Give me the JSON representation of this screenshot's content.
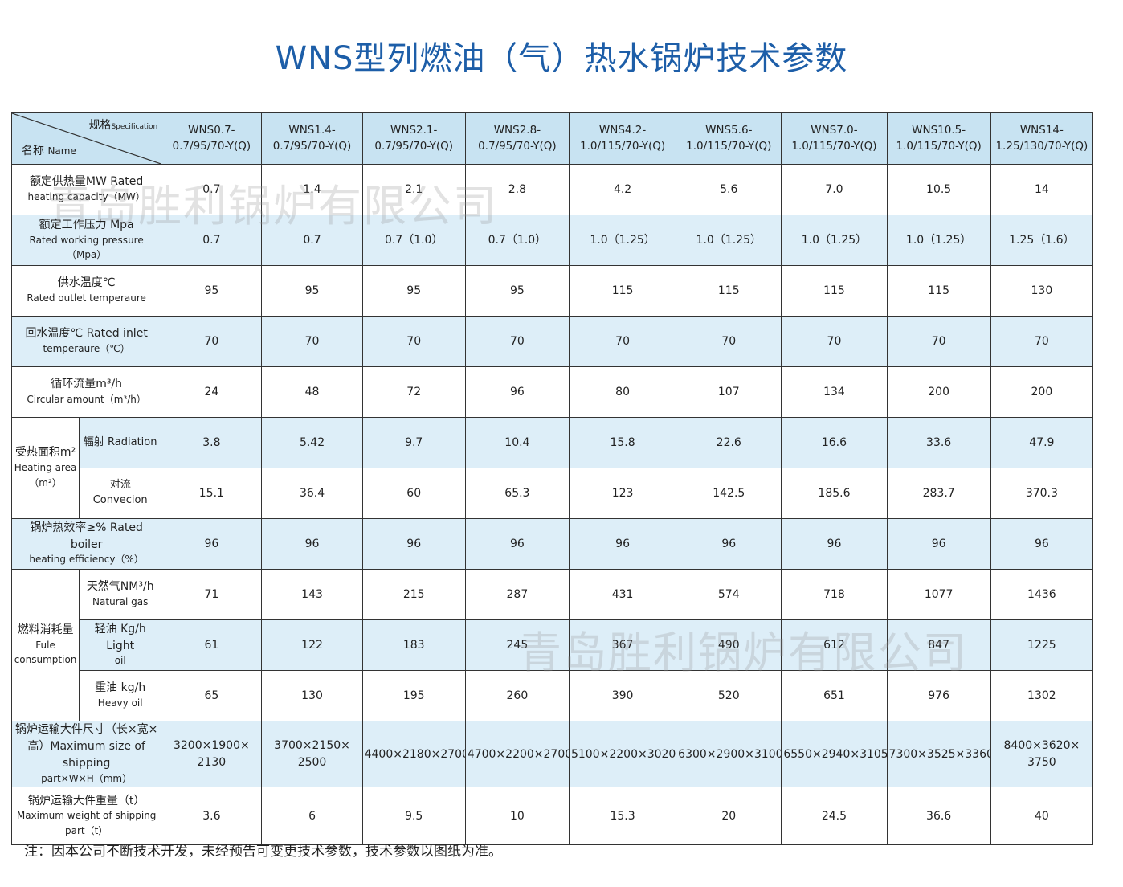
{
  "title": "WNS型列燃油（气）热水锅炉技术参数",
  "watermark": "青岛胜利锅炉有限公司",
  "note": "注：因本公司不断技术开发，未经预告可变更技术参数，技术参数以图纸为准。",
  "header": {
    "corner_spec_cn": "规格",
    "corner_spec_en": "Specification",
    "corner_name_cn": "名称",
    "corner_name_en": "Name",
    "models": [
      {
        "l1": "WNS0.7-",
        "l2": "0.7/95/70-Y(Q)"
      },
      {
        "l1": "WNS1.4-",
        "l2": "0.7/95/70-Y(Q)"
      },
      {
        "l1": "WNS2.1-",
        "l2": "0.7/95/70-Y(Q)"
      },
      {
        "l1": "WNS2.8-",
        "l2": "0.7/95/70-Y(Q)"
      },
      {
        "l1": "WNS4.2-",
        "l2": "1.0/115/70-Y(Q)"
      },
      {
        "l1": "WNS5.6-",
        "l2": "1.0/115/70-Y(Q)"
      },
      {
        "l1": "WNS7.0-",
        "l2": "1.0/115/70-Y(Q)"
      },
      {
        "l1": "WNS10.5-",
        "l2": "1.0/115/70-Y(Q)"
      },
      {
        "l1": "WNS14-",
        "l2": "1.25/130/70-Y(Q)"
      }
    ]
  },
  "rows": {
    "capacity": {
      "cn": "额定供热量MW Rated",
      "en": "heating capacity（MW）",
      "values": [
        "0.7",
        "1.4",
        "2.1",
        "2.8",
        "4.2",
        "5.6",
        "7.0",
        "10.5",
        "14"
      ]
    },
    "pressure": {
      "cn": "额定工作压力 Mpa",
      "en1": "Rated working pressure",
      "en2": "（Mpa）",
      "values": [
        "0.7",
        "0.7",
        "0.7（1.0）",
        "0.7（1.0）",
        "1.0（1.25）",
        "1.0（1.25）",
        "1.0（1.25）",
        "1.0（1.25）",
        "1.25（1.6）"
      ]
    },
    "outlet": {
      "cn": "供水温度℃",
      "en": "Rated outlet  temperaure",
      "values": [
        "95",
        "95",
        "95",
        "95",
        "115",
        "115",
        "115",
        "115",
        "130"
      ]
    },
    "inlet": {
      "cn": "回水温度℃  Rated inlet",
      "en": "temperaure（℃）",
      "values": [
        "70",
        "70",
        "70",
        "70",
        "70",
        "70",
        "70",
        "70",
        "70"
      ]
    },
    "flow": {
      "cn": "循环流量m³/h",
      "en": "Circular amount（m³/h）",
      "values": [
        "24",
        "48",
        "72",
        "96",
        "80",
        "107",
        "134",
        "200",
        "200"
      ]
    },
    "area": {
      "cn": "受热面积m²",
      "en1": "Heating area",
      "en2": "（m²）",
      "radiation": {
        "label": "辐射 Radiation",
        "values": [
          "3.8",
          "5.42",
          "9.7",
          "10.4",
          "15.8",
          "22.6",
          "16.6",
          "33.6",
          "47.9"
        ]
      },
      "convection": {
        "label": "对流 Convecion",
        "values": [
          "15.1",
          "36.4",
          "60",
          "65.3",
          "123",
          "142.5",
          "185.6",
          "283.7",
          "370.3"
        ]
      }
    },
    "efficiency": {
      "cn": "锅炉热效率≥% Rated boiler",
      "en": "heating efficiency（%）",
      "values": [
        "96",
        "96",
        "96",
        "96",
        "96",
        "96",
        "96",
        "96",
        "96"
      ]
    },
    "fuel": {
      "cn": "燃料消耗量",
      "en1": "Fule",
      "en2": "consumption",
      "gas": {
        "cn": "天然气NM³/h",
        "en": "Natural gas",
        "values": [
          "71",
          "143",
          "215",
          "287",
          "431",
          "574",
          "718",
          "1077",
          "1436"
        ]
      },
      "light": {
        "cn": "轻油 Kg/h Light",
        "en": "oil",
        "values": [
          "61",
          "122",
          "183",
          "245",
          "367",
          "490",
          "612",
          "847",
          "1225"
        ]
      },
      "heavy": {
        "cn": "重油 kg/h",
        "en": "Heavy  oil",
        "values": [
          "65",
          "130",
          "195",
          "260",
          "390",
          "520",
          "651",
          "976",
          "1302"
        ]
      }
    },
    "size": {
      "cn1": "锅炉运输大件尺寸（长×宽×",
      "cn2": "高）Maximum size of shipping",
      "en": "part×W×H（mm）",
      "values": [
        {
          "l1": "3200×1900×",
          "l2": "2130"
        },
        {
          "l1": "3700×2150×",
          "l2": "2500"
        },
        {
          "l1": "4400×2180×2700",
          "l2": ""
        },
        {
          "l1": "4700×2200×2700",
          "l2": ""
        },
        {
          "l1": "5100×2200×3020",
          "l2": ""
        },
        {
          "l1": "6300×2900×3100",
          "l2": ""
        },
        {
          "l1": "6550×2940×3105",
          "l2": ""
        },
        {
          "l1": "7300×3525×3360",
          "l2": ""
        },
        {
          "l1": "8400×3620×",
          "l2": "3750"
        }
      ]
    },
    "weight": {
      "cn": "锅炉运输大件重量（t）",
      "en1": "Maximum weight of shipping",
      "en2": "part（t）",
      "values": [
        "3.6",
        "6",
        "9.5",
        "10",
        "15.3",
        "20",
        "24.5",
        "36.6",
        "40"
      ]
    }
  }
}
